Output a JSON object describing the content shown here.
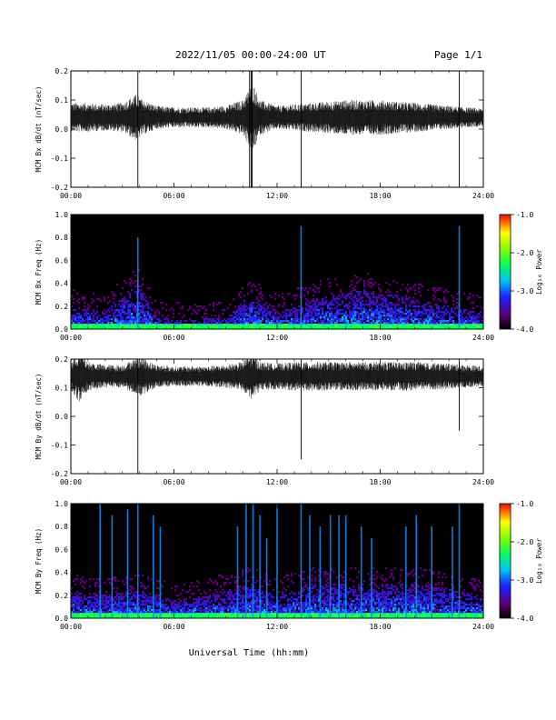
{
  "header": {
    "title": "2022/11/05  00:00-24:00 UT",
    "page": "Page 1/1"
  },
  "x_axis_label": "Universal Time (hh:mm)",
  "chart_data": [
    {
      "type": "line",
      "ylabel": "MCM Bx dB/dt (nT/sec)",
      "xlim": [
        0,
        24
      ],
      "ylim": [
        -0.2,
        0.2
      ],
      "x_ticks": [
        "00:00",
        "06:00",
        "12:00",
        "18:00",
        "24:00"
      ],
      "y_ticks": [
        "-0.2",
        "-0.1",
        "0.0",
        "0.1",
        "0.2"
      ],
      "baseline": 0.04,
      "noise_envelope": [
        [
          0,
          0.05
        ],
        [
          1,
          0.05
        ],
        [
          2,
          0.045
        ],
        [
          3,
          0.05
        ],
        [
          3.8,
          0.08
        ],
        [
          4.2,
          0.06
        ],
        [
          5,
          0.04
        ],
        [
          6,
          0.035
        ],
        [
          8,
          0.035
        ],
        [
          9,
          0.04
        ],
        [
          10,
          0.06
        ],
        [
          10.6,
          0.12
        ],
        [
          11,
          0.06
        ],
        [
          12,
          0.04
        ],
        [
          13,
          0.045
        ],
        [
          14,
          0.05
        ],
        [
          15,
          0.055
        ],
        [
          16,
          0.06
        ],
        [
          17,
          0.06
        ],
        [
          18,
          0.06
        ],
        [
          19,
          0.055
        ],
        [
          20,
          0.05
        ],
        [
          21,
          0.045
        ],
        [
          22,
          0.04
        ],
        [
          23,
          0.035
        ],
        [
          24,
          0.03
        ]
      ],
      "spikes": [
        [
          3.9,
          -0.2,
          0.2
        ],
        [
          10.4,
          -0.2,
          0.2
        ],
        [
          10.5,
          -0.2,
          0.2
        ],
        [
          10.55,
          -0.2,
          0.2
        ],
        [
          13.4,
          -0.2,
          0.2
        ],
        [
          22.6,
          -0.2,
          0.2
        ]
      ],
      "grid": false
    },
    {
      "type": "heatmap",
      "ylabel": "MCM Bx Freq (Hz)",
      "colorbar_label": "Log₁₀ Power",
      "xlim": [
        0,
        24
      ],
      "ylim": [
        0,
        1.0
      ],
      "x_ticks": [
        "00:00",
        "06:00",
        "12:00",
        "18:00",
        "24:00"
      ],
      "y_ticks": [
        "0.0",
        "0.2",
        "0.4",
        "0.6",
        "0.8",
        "1.0"
      ],
      "colorbar_ticks": [
        "-1.0",
        "-2.0",
        "-3.0",
        "-4.0"
      ],
      "clim": [
        -4.0,
        -1.0
      ],
      "activity": [
        [
          0,
          0.2
        ],
        [
          2,
          0.15
        ],
        [
          3.9,
          0.4
        ],
        [
          5,
          0.1
        ],
        [
          7,
          0.08
        ],
        [
          9,
          0.1
        ],
        [
          10.5,
          0.3
        ],
        [
          12,
          0.15
        ],
        [
          14,
          0.25
        ],
        [
          15,
          0.3
        ],
        [
          16,
          0.3
        ],
        [
          17,
          0.35
        ],
        [
          18,
          0.3
        ],
        [
          19,
          0.3
        ],
        [
          20,
          0.25
        ],
        [
          22,
          0.2
        ],
        [
          24,
          0.15
        ]
      ],
      "vertical_features": [
        [
          3.9,
          0.8
        ],
        [
          13.4,
          0.9
        ],
        [
          22.6,
          0.9
        ]
      ]
    },
    {
      "type": "line",
      "ylabel": "MCM By dB/dt (nT/sec)",
      "xlim": [
        0,
        24
      ],
      "ylim": [
        -0.2,
        0.2
      ],
      "x_ticks": [
        "00:00",
        "06:00",
        "12:00",
        "18:00",
        "24:00"
      ],
      "y_ticks": [
        "-0.2",
        "-0.1",
        "0.0",
        "0.1",
        "0.2"
      ],
      "baseline": 0.14,
      "noise_envelope": [
        [
          0,
          0.05
        ],
        [
          0.5,
          0.09
        ],
        [
          1,
          0.05
        ],
        [
          2,
          0.04
        ],
        [
          3,
          0.04
        ],
        [
          4,
          0.07
        ],
        [
          5,
          0.04
        ],
        [
          6,
          0.035
        ],
        [
          8,
          0.035
        ],
        [
          9,
          0.04
        ],
        [
          10,
          0.05
        ],
        [
          10.5,
          0.08
        ],
        [
          11,
          0.05
        ],
        [
          12,
          0.045
        ],
        [
          13,
          0.05
        ],
        [
          14,
          0.05
        ],
        [
          16,
          0.05
        ],
        [
          18,
          0.05
        ],
        [
          20,
          0.05
        ],
        [
          22,
          0.045
        ],
        [
          24,
          0.035
        ]
      ],
      "spikes": [
        [
          3.9,
          -0.2,
          0.2
        ],
        [
          13.4,
          -0.15,
          0.2
        ],
        [
          22.6,
          -0.05,
          0.2
        ]
      ],
      "grid": false
    },
    {
      "type": "heatmap",
      "ylabel": "MCM By Freq (Hz)",
      "colorbar_label": "Log₁₀ Power",
      "xlim": [
        0,
        24
      ],
      "ylim": [
        0,
        1.0
      ],
      "x_ticks": [
        "00:00",
        "06:00",
        "12:00",
        "18:00",
        "24:00"
      ],
      "y_ticks": [
        "0.0",
        "0.2",
        "0.4",
        "0.6",
        "0.8",
        "1.0"
      ],
      "colorbar_ticks": [
        "-1.0",
        "-2.0",
        "-3.0",
        "-4.0"
      ],
      "clim": [
        -4.0,
        -1.0
      ],
      "activity": [
        [
          0,
          0.25
        ],
        [
          1,
          0.2
        ],
        [
          2,
          0.2
        ],
        [
          4,
          0.25
        ],
        [
          6,
          0.15
        ],
        [
          8,
          0.2
        ],
        [
          10.5,
          0.3
        ],
        [
          12,
          0.2
        ],
        [
          14,
          0.3
        ],
        [
          15,
          0.3
        ],
        [
          16,
          0.3
        ],
        [
          18,
          0.3
        ],
        [
          20,
          0.3
        ],
        [
          22,
          0.25
        ],
        [
          24,
          0.2
        ]
      ],
      "vertical_features": [
        [
          1.7,
          1.0
        ],
        [
          2.4,
          0.9
        ],
        [
          3.3,
          0.95
        ],
        [
          3.9,
          1.0
        ],
        [
          4.8,
          0.9
        ],
        [
          5.2,
          0.8
        ],
        [
          9.7,
          0.8
        ],
        [
          10.2,
          1.0
        ],
        [
          10.6,
          1.0
        ],
        [
          11.0,
          0.9
        ],
        [
          11.4,
          0.7
        ],
        [
          12.0,
          1.0
        ],
        [
          13.4,
          1.0
        ],
        [
          13.9,
          0.9
        ],
        [
          14.5,
          0.8
        ],
        [
          15.1,
          0.9
        ],
        [
          15.6,
          0.9
        ],
        [
          16.0,
          0.9
        ],
        [
          16.9,
          0.8
        ],
        [
          17.5,
          0.7
        ],
        [
          19.5,
          0.8
        ],
        [
          20.1,
          0.9
        ],
        [
          21.0,
          0.8
        ],
        [
          22.2,
          0.8
        ],
        [
          22.6,
          1.0
        ]
      ]
    }
  ]
}
